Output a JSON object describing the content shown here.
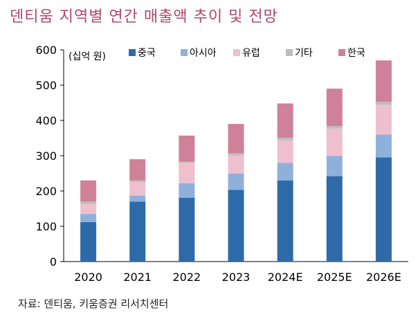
{
  "title": "덴티움 지역별 연간 매출액 추이 및 전망",
  "source": "자료: 덴티움, 키움증권 리서치센터",
  "chart_data": {
    "type": "bar",
    "stacked": true,
    "unit_label": "(십억 원)",
    "categories": [
      "2020",
      "2021",
      "2022",
      "2023",
      "2024E",
      "2025E",
      "2026E"
    ],
    "series": [
      {
        "name": "중국",
        "color": "#2e6aa8",
        "values": [
          112,
          170,
          181,
          203,
          230,
          242,
          295
        ]
      },
      {
        "name": "아시아",
        "color": "#8fb0da",
        "values": [
          23,
          17,
          41,
          46,
          50,
          57,
          65
        ]
      },
      {
        "name": "유럽",
        "color": "#eebfcd",
        "values": [
          28,
          38,
          58,
          52,
          64,
          78,
          85
        ]
      },
      {
        "name": "기타",
        "color": "#bdbdbd",
        "values": [
          7,
          5,
          3,
          6,
          7,
          7,
          8
        ]
      },
      {
        "name": "한국",
        "color": "#cf8199",
        "values": [
          60,
          60,
          74,
          83,
          97,
          106,
          117
        ]
      }
    ],
    "ylim": [
      0,
      600
    ],
    "yticks": [
      0,
      100,
      200,
      300,
      400,
      500,
      600
    ],
    "xlabel": "",
    "ylabel": "",
    "grid": false,
    "legend": "top"
  }
}
